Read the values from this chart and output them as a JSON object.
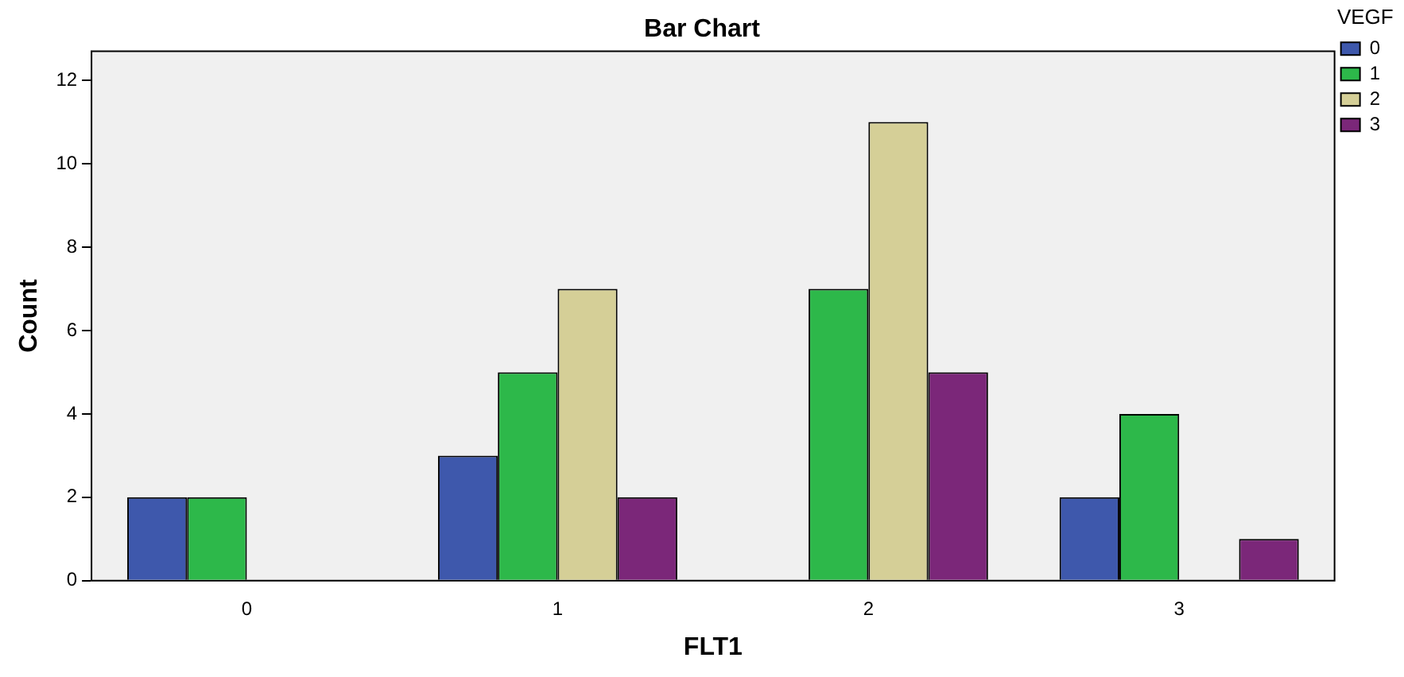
{
  "chart_data": {
    "type": "bar",
    "title": "Bar Chart",
    "xlabel": "FLT1",
    "ylabel": "Count",
    "legend_title": "VEGF",
    "categories": [
      "0",
      "1",
      "2",
      "3"
    ],
    "series": [
      {
        "name": "0",
        "color": "#3e58ac",
        "values": [
          2,
          3,
          null,
          2
        ]
      },
      {
        "name": "1",
        "color": "#2db84a",
        "values": [
          2,
          5,
          7,
          4
        ]
      },
      {
        "name": "2",
        "color": "#d5cf97",
        "values": [
          null,
          7,
          11,
          null
        ]
      },
      {
        "name": "3",
        "color": "#7b2779",
        "values": [
          null,
          2,
          5,
          1
        ]
      }
    ],
    "ylim": [
      0,
      12.7
    ],
    "yticks": [
      0,
      2,
      4,
      6,
      8,
      10,
      12
    ],
    "grid": false,
    "legend": "top right"
  }
}
